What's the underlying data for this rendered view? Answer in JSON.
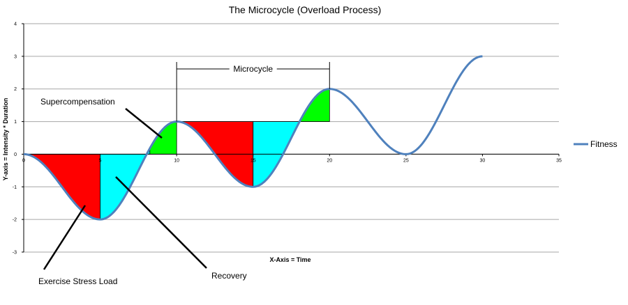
{
  "chart_data": {
    "type": "line",
    "title": "The Microcycle (Overload Process)",
    "xlabel": "X-Axis = Time",
    "ylabel": "Y-axis = Intensity * Duration",
    "xlim": [
      0,
      35
    ],
    "ylim": [
      -3,
      4
    ],
    "x_ticks": [
      0,
      5,
      10,
      15,
      20,
      25,
      30,
      35
    ],
    "y_ticks": [
      -3,
      -2,
      -1,
      0,
      1,
      2,
      3,
      4
    ],
    "grid": true,
    "legend_position": "right",
    "series": [
      {
        "name": "Fitness",
        "color": "#4f81bd",
        "x": [
          0,
          5,
          10,
          15,
          20,
          25,
          30
        ],
        "y": [
          0,
          -2,
          1,
          -1,
          2,
          0,
          3
        ]
      }
    ],
    "shaded_regions": [
      {
        "label": "Exercise Stress Load",
        "color": "#ff0000",
        "x_start": 0,
        "x_end": 5,
        "baseline": 0
      },
      {
        "label": "Recovery",
        "color": "#00ffff",
        "x_start": 5,
        "x_end": 8.25,
        "baseline": 0
      },
      {
        "label": "Supercompensation",
        "color": "#00ff00",
        "x_start": 8.25,
        "x_end": 10,
        "baseline": 0
      },
      {
        "label": "Exercise Stress Load",
        "color": "#ff0000",
        "x_start": 10,
        "x_end": 15,
        "baseline": 1
      },
      {
        "label": "Recovery",
        "color": "#00ffff",
        "x_start": 15,
        "x_end": 18.1,
        "baseline": 1
      },
      {
        "label": "Supercompensation",
        "color": "#00ff00",
        "x_start": 18.1,
        "x_end": 20,
        "baseline": 1
      }
    ],
    "annotations": {
      "microcycle": {
        "text": "Microcycle",
        "x_start": 10,
        "x_end": 20
      },
      "supercompensation": {
        "text": "Supercompensation"
      },
      "exercise_stress_load": {
        "text": "Exercise Stress Load"
      },
      "recovery": {
        "text": "Recovery"
      }
    }
  }
}
